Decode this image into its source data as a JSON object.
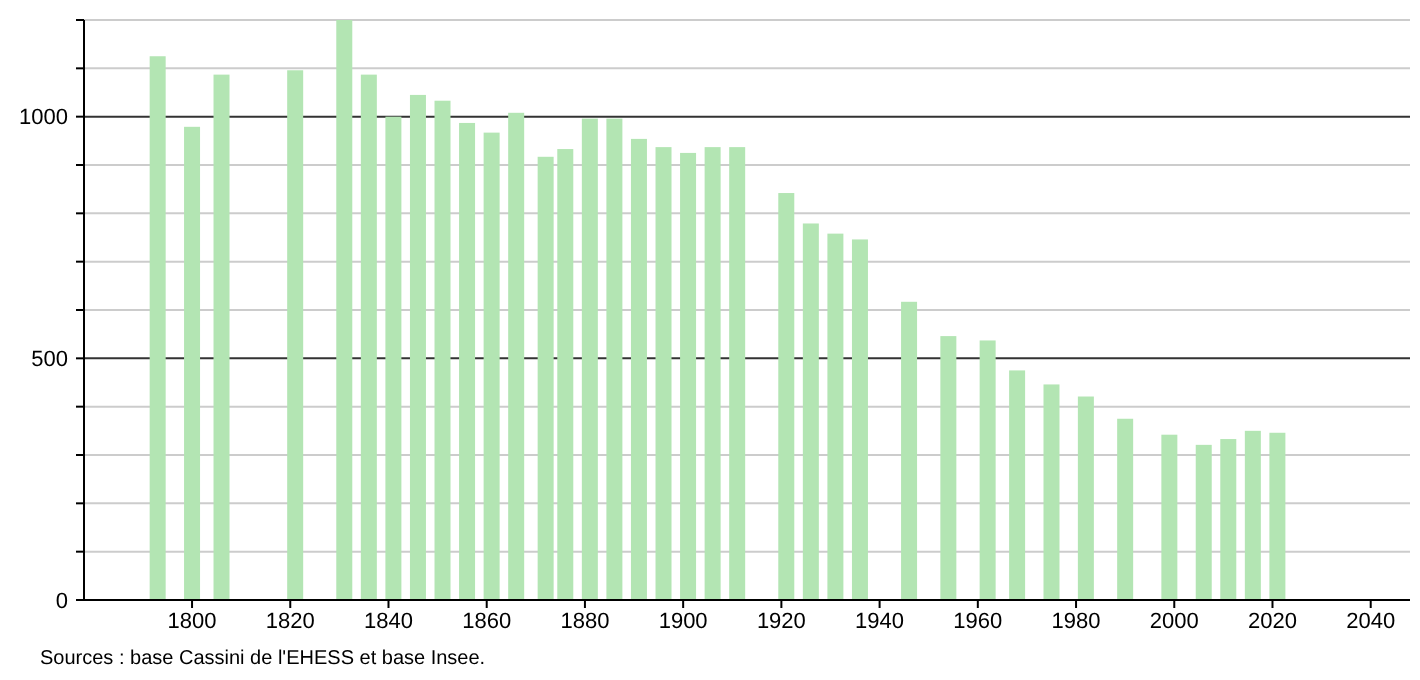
{
  "chart_data": {
    "type": "bar",
    "x": [
      1793,
      1800,
      1806,
      1821,
      1831,
      1836,
      1841,
      1846,
      1851,
      1856,
      1861,
      1866,
      1872,
      1876,
      1881,
      1886,
      1891,
      1896,
      1901,
      1906,
      1911,
      1921,
      1926,
      1931,
      1936,
      1946,
      1954,
      1962,
      1968,
      1975,
      1982,
      1990,
      1999,
      2006,
      2011,
      2016,
      2021
    ],
    "values": [
      1125,
      979,
      1087,
      1096,
      1200,
      1087,
      1000,
      1045,
      1033,
      987,
      967,
      1008,
      917,
      933,
      996,
      996,
      954,
      937,
      925,
      937,
      937,
      842,
      779,
      758,
      746,
      617,
      546,
      537,
      475,
      446,
      421,
      375,
      342,
      321,
      333,
      350,
      346
    ],
    "color": "#b3e5b3",
    "xlim": [
      1778,
      2048
    ],
    "xticks": [
      1800,
      1820,
      1840,
      1860,
      1880,
      1900,
      1920,
      1940,
      1960,
      1980,
      2000,
      2020,
      2040
    ],
    "ylim": [
      0,
      1200
    ],
    "yticks": [
      0,
      {
        "value": 100,
        "label": null
      },
      {
        "value": 200,
        "label": null
      },
      {
        "value": 300,
        "label": null
      },
      {
        "value": 400,
        "label": null
      },
      500,
      {
        "value": 600,
        "label": null
      },
      {
        "value": 700,
        "label": null
      },
      {
        "value": 800,
        "label": null
      },
      {
        "value": 900,
        "label": null
      },
      1000,
      {
        "value": 1100,
        "label": null
      },
      {
        "value": 1200,
        "label": null
      }
    ],
    "grid": "y",
    "annotations": [
      "Sources : base Cassini de l'EHESS et base Insee."
    ]
  }
}
